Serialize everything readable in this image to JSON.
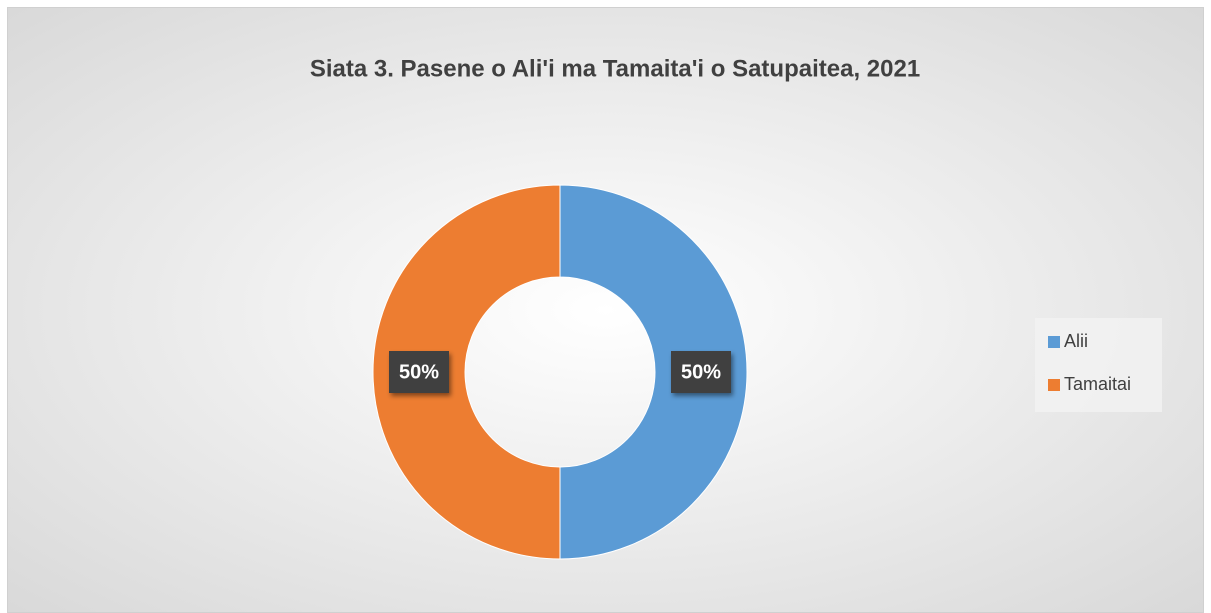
{
  "chart_data": {
    "type": "donut",
    "title": "Siata 3. Pasene o Ali'i ma Tamaita'i o Satupaitea, 2021",
    "categories": [
      "Alii",
      "Tamaitai"
    ],
    "values": [
      50,
      50
    ],
    "value_labels": [
      "50%",
      "50%"
    ],
    "colors": [
      "#5b9bd5",
      "#ed7d31"
    ],
    "legend": "right"
  }
}
